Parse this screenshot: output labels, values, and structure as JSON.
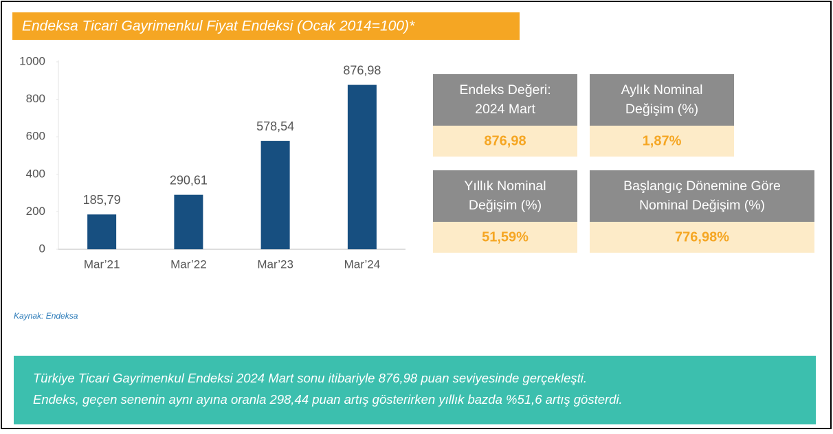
{
  "chart_data": {
    "type": "bar",
    "title": "Endeksa Ticari Gayrimenkul Fiyat Endeksi (Ocak 2014=100)*",
    "categories": [
      "Mar’21",
      "Mar’22",
      "Mar’23",
      "Mar’24"
    ],
    "values": [
      185.79,
      290.61,
      578.54,
      876.98
    ],
    "value_labels": [
      "185,79",
      "290,61",
      "578,54",
      "876,98"
    ],
    "color": "#174f80",
    "ylim": [
      0,
      1000
    ],
    "yticks": [
      0,
      200,
      400,
      600,
      800,
      1000
    ],
    "grid": false
  },
  "stats": [
    {
      "label_lines": [
        "Endeks Değeri:",
        "2024 Mart"
      ],
      "value": "876,98"
    },
    {
      "label_lines": [
        "Aylık Nominal",
        "Değişim (%)"
      ],
      "value": "1,87%"
    },
    {
      "label_lines": [
        "Yıllık Nominal",
        "Değişim (%)"
      ],
      "value": "51,59%"
    },
    {
      "label_lines": [
        "Başlangıç Dönemine Göre",
        "Nominal Değişim (%)"
      ],
      "value": "776,98%"
    }
  ],
  "source": "Kaynak: Endeksa",
  "note_lines": [
    "Türkiye Ticari Gayrimenkul Endeksi 2024 Mart sonu itibariyle 876,98 puan seviyesinde gerçekleşti.",
    "Endeks, geçen senenin aynı ayına oranla 298,44 puan artış gösterirken yıllık bazda %51,6 artış gösterdi."
  ]
}
